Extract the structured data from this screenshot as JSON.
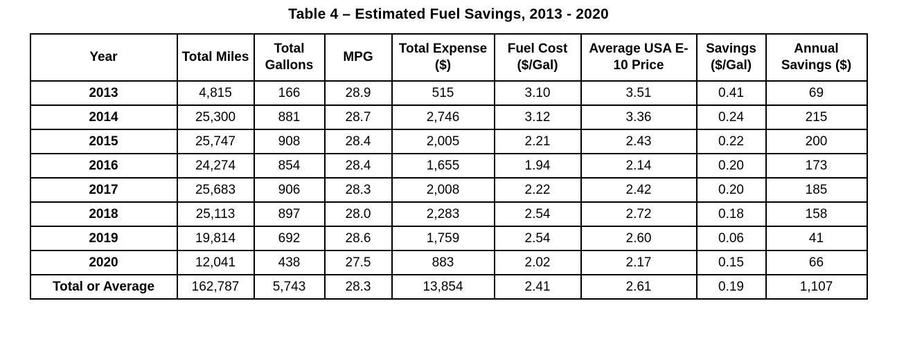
{
  "chart_data": {
    "type": "table",
    "title": "Table 4 – Estimated Fuel Savings, 2013 - 2020",
    "columns": [
      "Year",
      "Total Miles",
      "Total Gallons",
      "MPG",
      "Total Expense ($)",
      "Fuel Cost ($/Gal)",
      "Average USA E-10 Price",
      "Savings ($/Gal)",
      "Annual Savings ($)"
    ],
    "rows": [
      [
        "2013",
        "4,815",
        "166",
        "28.9",
        "515",
        "3.10",
        "3.51",
        "0.41",
        "69"
      ],
      [
        "2014",
        "25,300",
        "881",
        "28.7",
        "2,746",
        "3.12",
        "3.36",
        "0.24",
        "215"
      ],
      [
        "2015",
        "25,747",
        "908",
        "28.4",
        "2,005",
        "2.21",
        "2.43",
        "0.22",
        "200"
      ],
      [
        "2016",
        "24,274",
        "854",
        "28.4",
        "1,655",
        "1.94",
        "2.14",
        "0.20",
        "173"
      ],
      [
        "2017",
        "25,683",
        "906",
        "28.3",
        "2,008",
        "2.22",
        "2.42",
        "0.20",
        "185"
      ],
      [
        "2018",
        "25,113",
        "897",
        "28.0",
        "2,283",
        "2.54",
        "2.72",
        "0.18",
        "158"
      ],
      [
        "2019",
        "19,814",
        "692",
        "28.6",
        "1,759",
        "2.54",
        "2.60",
        "0.06",
        "41"
      ],
      [
        "2020",
        "12,041",
        "438",
        "27.5",
        "883",
        "2.02",
        "2.17",
        "0.15",
        "66"
      ],
      [
        "Total or Average",
        "162,787",
        "5,743",
        "28.3",
        "13,854",
        "2.41",
        "2.61",
        "0.19",
        "1,107"
      ]
    ],
    "colors": {
      "text": "#000000",
      "border": "#000000",
      "background": "#ffffff"
    }
  }
}
